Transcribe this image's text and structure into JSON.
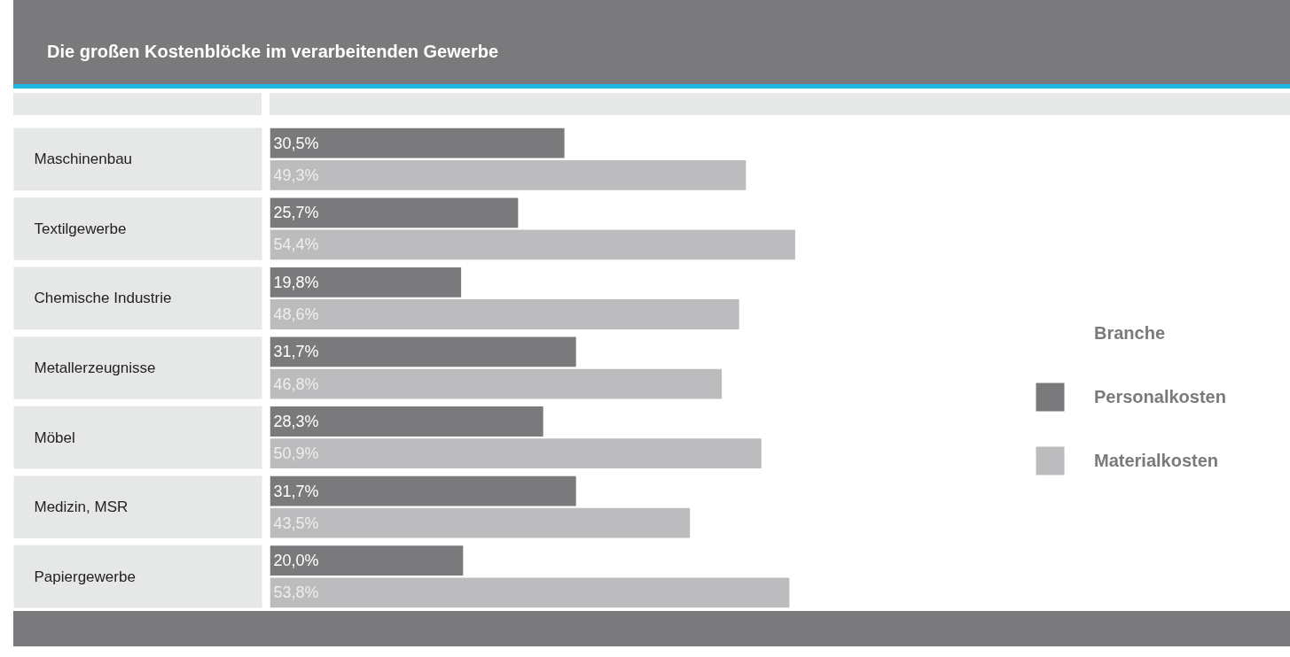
{
  "chart_data": {
    "type": "bar",
    "orientation": "horizontal",
    "title": "Die großen Kostenblöcke im verarbeitenden Gewerbe",
    "ylabel": "Branche",
    "categories": [
      "Maschinenbau",
      "Textilgewerbe",
      "Chemische Industrie",
      "Metallerzeugnisse",
      "Möbel",
      "Medizin, MSR",
      "Papiergewerbe"
    ],
    "series": [
      {
        "name": "Personalkosten",
        "color": "#7a7a7c",
        "values": [
          30.5,
          25.7,
          19.8,
          31.7,
          28.3,
          31.7,
          20.0
        ],
        "value_labels": [
          "30,5%",
          "25,7%",
          "19,8%",
          "31,7%",
          "28,3%",
          "31,7%",
          "20,0%"
        ]
      },
      {
        "name": "Materialkosten",
        "color": "#bcbcbe",
        "values": [
          49.3,
          54.4,
          48.6,
          46.8,
          50.9,
          43.5,
          53.8
        ],
        "value_labels": [
          "49,3%",
          "54,4%",
          "48,6%",
          "46,8%",
          "50,9%",
          "43,5%",
          "53,8%"
        ]
      }
    ],
    "xlim": [
      0,
      105.7
    ],
    "legend": "right"
  }
}
